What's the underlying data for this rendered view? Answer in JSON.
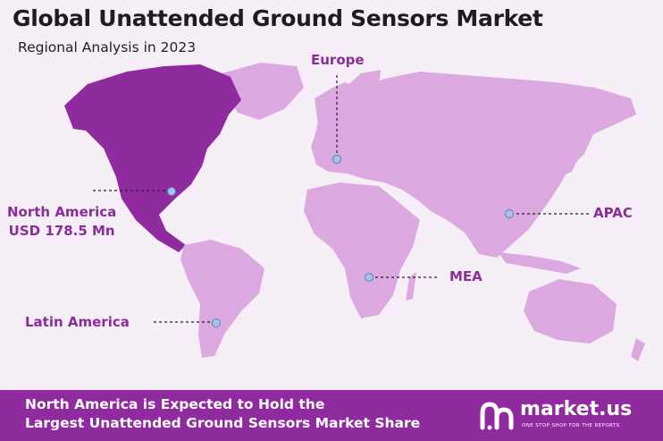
{
  "title": "Global Unattended Ground Sensors Market",
  "subtitle": "Regional Analysis in 2023",
  "map_data": {
    "highlighted_region": "North America",
    "highlight_color": "#8f2a9f",
    "land_color": "#dba9e0",
    "marker_color": "#9fc5e8",
    "regions": [
      {
        "id": "europe",
        "name": "Europe"
      },
      {
        "id": "north-america",
        "name": "North America",
        "value": "USD 178.5 Mn"
      },
      {
        "id": "apac",
        "name": "APAC"
      },
      {
        "id": "mea",
        "name": "MEA"
      },
      {
        "id": "latin-america",
        "name": "Latin America"
      }
    ]
  },
  "footer": {
    "line1": "North America is Expected to Hold the",
    "line2": "Largest Unattended Ground Sensors Market Share",
    "brand": "market.us",
    "tagline": "ONE STOP SHOP FOR THE REPORTS"
  }
}
